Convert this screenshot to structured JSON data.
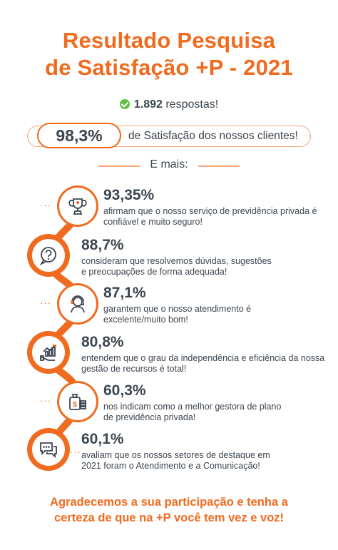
{
  "title_line1": "Resultado Pesquisa",
  "title_line2": "de Satisfação +P - 2021",
  "responses_count": "1.892",
  "responses_label": "respostas!",
  "satisfaction_value": "98,3%",
  "satisfaction_label": "de Satisfação dos nossos clientes!",
  "more_label": "E mais:",
  "items": [
    {
      "value": "93,35%",
      "line1": "afirmam que o nosso serviço de previdência privada é",
      "line2": "confiável e muito seguro!",
      "icon": "trophy-icon"
    },
    {
      "value": "88,7%",
      "line1": "consideram que resolvemos dúvidas, sugestões",
      "line2": "e preocupações de forma adequada!",
      "icon": "question-icon"
    },
    {
      "value": "87,1%",
      "line1": "garantem que o nosso atendimento é",
      "line2": "excelente/muito bom!",
      "icon": "support-agent-icon"
    },
    {
      "value": "80,8%",
      "line1": "entendem que o grau da independência e eficiência da nossa",
      "line2": "gestão de recursos é total!",
      "icon": "growth-chart-icon"
    },
    {
      "value": "60,3%",
      "line1": "nos indicam como a melhor gestora de plano",
      "line2": "de previdência privada!",
      "icon": "money-bag-icon"
    },
    {
      "value": "60,1%",
      "line1": "avaliam que os nossos setores de destaque em",
      "line2": "2021 foram o Atendimento e a Comunicação!",
      "icon": "chat-icon"
    }
  ],
  "footer_line1": "Agradecemos a sua participação e tenha a",
  "footer_line2": "certeza de que na +P você tem vez e voz!",
  "colors": {
    "accent": "#f06a1f",
    "text": "#3d4650",
    "check": "#5fbf3c"
  }
}
